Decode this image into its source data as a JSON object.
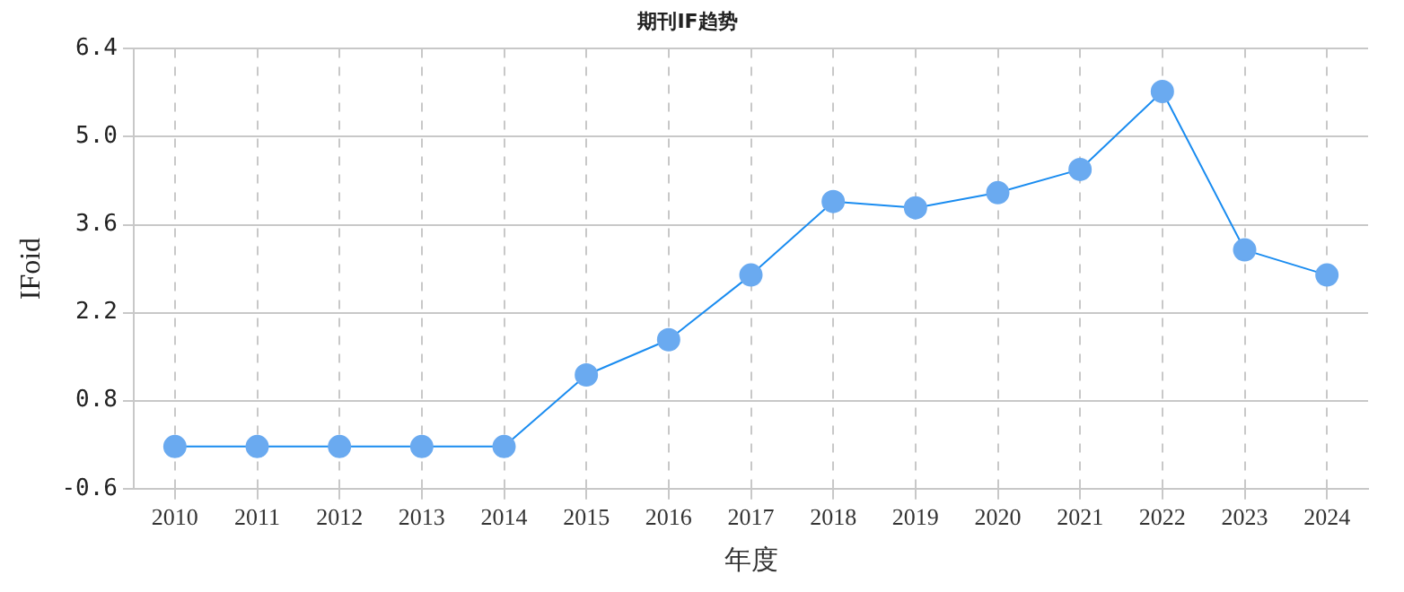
{
  "chart_data": {
    "type": "line",
    "title": "期刊IF趋势",
    "xlabel": "年度",
    "ylabel": "IFoid",
    "categories": [
      "2010",
      "2011",
      "2012",
      "2013",
      "2014",
      "2015",
      "2016",
      "2017",
      "2018",
      "2019",
      "2020",
      "2021",
      "2022",
      "2023",
      "2024"
    ],
    "series": [
      {
        "color": "#1a8cf0",
        "values": [
          0.07,
          0.07,
          0.07,
          0.07,
          0.07,
          1.21,
          1.77,
          2.8,
          3.97,
          3.87,
          4.11,
          4.48,
          5.72,
          3.2,
          2.8
        ]
      }
    ],
    "ylim": [
      -0.6,
      6.4
    ],
    "yticks": [
      {
        "value": -0.6,
        "label": "-0.6"
      },
      {
        "value": 0.8,
        "label": "0.8"
      },
      {
        "value": 2.2,
        "label": "2.2"
      },
      {
        "value": 3.6,
        "label": "3.6"
      },
      {
        "value": 5.0,
        "label": "5.0"
      },
      {
        "value": 6.4,
        "label": "6.4"
      }
    ],
    "grid": true,
    "legend": false,
    "marker": "circle",
    "line_style": "solid"
  }
}
